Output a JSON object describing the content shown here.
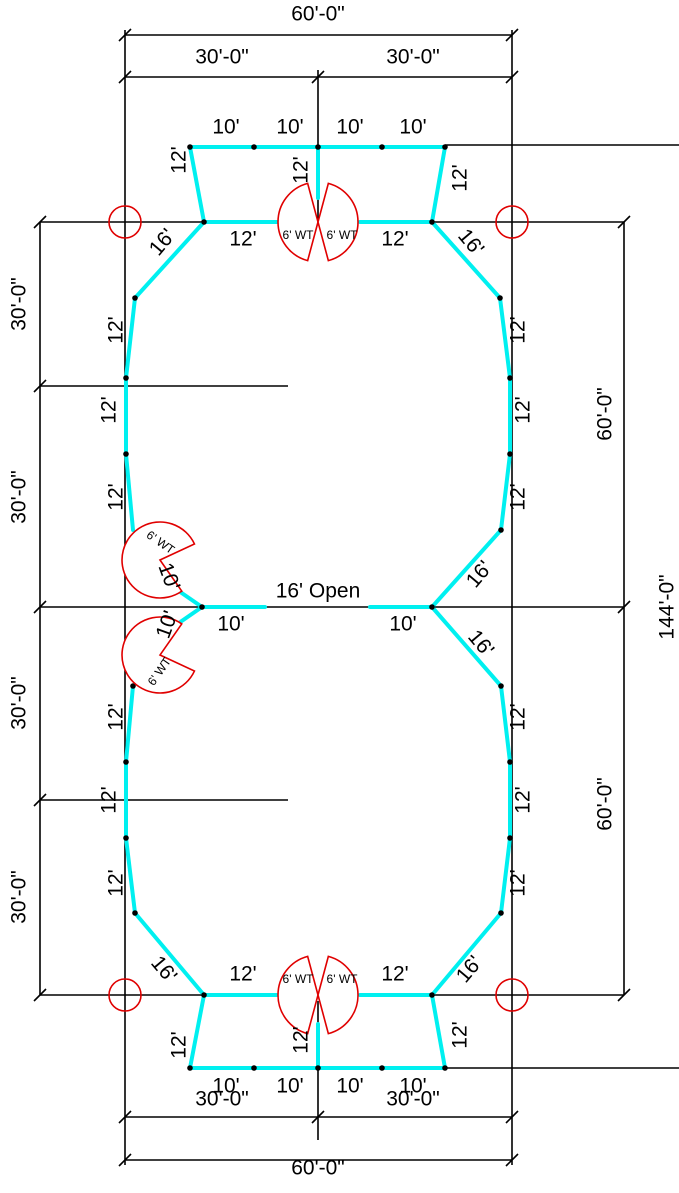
{
  "drawing": {
    "overall_width": "60'-0\"",
    "half_width": "30'-0\"",
    "overall_length": "144'-0\"",
    "section_length": "60'-0\"",
    "quarter_length": "30'-0\"",
    "opening_label": "16' Open",
    "gate_label": "6' WT",
    "panel_lengths": {
      "short": "10'",
      "medium": "12'",
      "long": "16'"
    },
    "colors": {
      "fence": "#00f0f0",
      "gate": "#e00000",
      "dimension": "#000000"
    }
  }
}
